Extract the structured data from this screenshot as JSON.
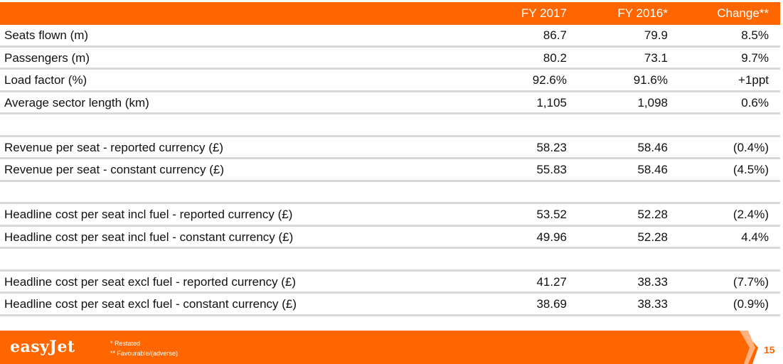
{
  "table": {
    "columns": [
      "FY 2017",
      "FY 2016*",
      "Change**"
    ],
    "groups": [
      [
        [
          "Seats flown (m)",
          "86.7",
          "79.9",
          "8.5%"
        ],
        [
          "Passengers (m)",
          "80.2",
          "73.1",
          "9.7%"
        ],
        [
          "Load factor (%)",
          "92.6%",
          "91.6%",
          "+1ppt"
        ],
        [
          "Average sector length (km)",
          "1,105",
          "1,098",
          "0.6%"
        ]
      ],
      [
        [
          "Revenue per seat - reported currency (£)",
          "58.23",
          "58.46",
          "(0.4%)"
        ],
        [
          "Revenue per seat - constant currency (£)",
          "55.83",
          "58.46",
          "(4.5%)"
        ]
      ],
      [
        [
          "Headline cost per seat incl fuel - reported currency (£)",
          "53.52",
          "52.28",
          "(2.4%)"
        ],
        [
          "Headline cost per seat incl fuel - constant currency (£)",
          "49.96",
          "52.28",
          "4.4%"
        ]
      ],
      [
        [
          "Headline cost per seat excl fuel - reported currency (£)",
          "41.27",
          "38.33",
          "(7.7%)"
        ],
        [
          "Headline cost per seat excl fuel - constant currency (£)",
          "38.69",
          "38.33",
          "(0.9%)"
        ]
      ]
    ]
  },
  "footer": {
    "logo": "easyJet",
    "notes": [
      "* Restated",
      "** Favourable/(adverse)"
    ],
    "page": "15"
  }
}
